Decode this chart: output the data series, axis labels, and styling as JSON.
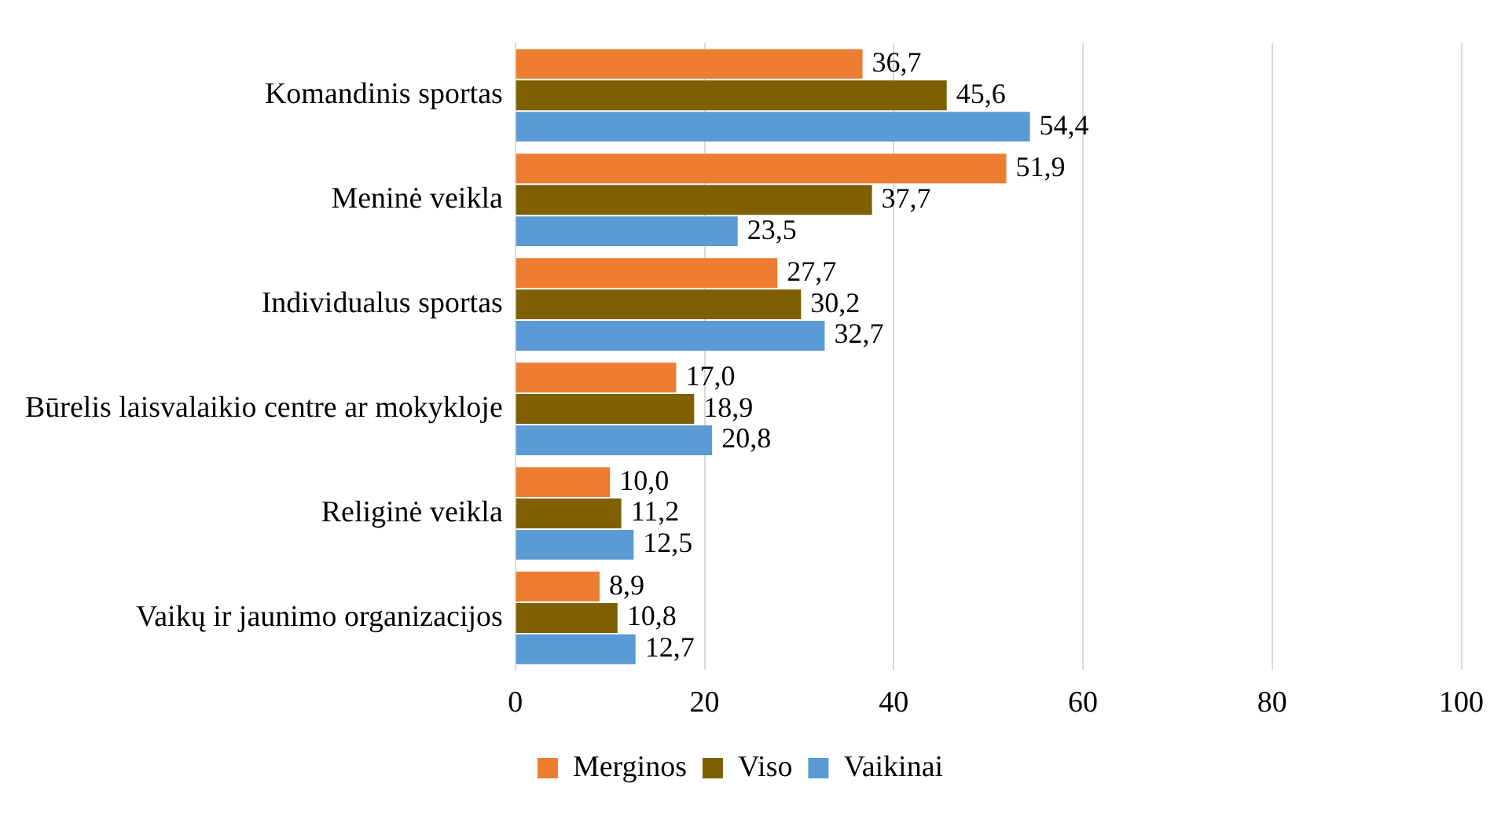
{
  "chart_data": {
    "type": "bar",
    "orientation": "horizontal",
    "categories": [
      "Komandinis sportas",
      "Meninė veikla",
      "Individualus sportas",
      "Būrelis laisvalaikio centre ar mokykloje",
      "Religinė veikla",
      "Vaikų ir jaunimo organizacijos"
    ],
    "series": [
      {
        "name": "Merginos",
        "color": "#ed7d31",
        "values": [
          36.7,
          51.9,
          27.7,
          17.0,
          10.0,
          8.9
        ],
        "value_labels": [
          "36,7",
          "51,9",
          "27,7",
          "17,0",
          "10,0",
          "8,9"
        ]
      },
      {
        "name": "Viso",
        "color": "#7f6000",
        "values": [
          45.6,
          37.7,
          30.2,
          18.9,
          11.2,
          10.8
        ],
        "value_labels": [
          "45,6",
          "37,7",
          "30,2",
          "18,9",
          "11,2",
          "10,8"
        ]
      },
      {
        "name": "Vaikinai",
        "color": "#5b9bd5",
        "values": [
          54.4,
          23.5,
          32.7,
          20.8,
          12.5,
          12.7
        ],
        "value_labels": [
          "54,4",
          "23,5",
          "32,7",
          "20,8",
          "12,5",
          "12,7"
        ]
      }
    ],
    "xlim": [
      0,
      100
    ],
    "xticks": [
      0,
      20,
      40,
      60,
      80,
      100
    ],
    "grid": "x",
    "legend": "bottom"
  }
}
